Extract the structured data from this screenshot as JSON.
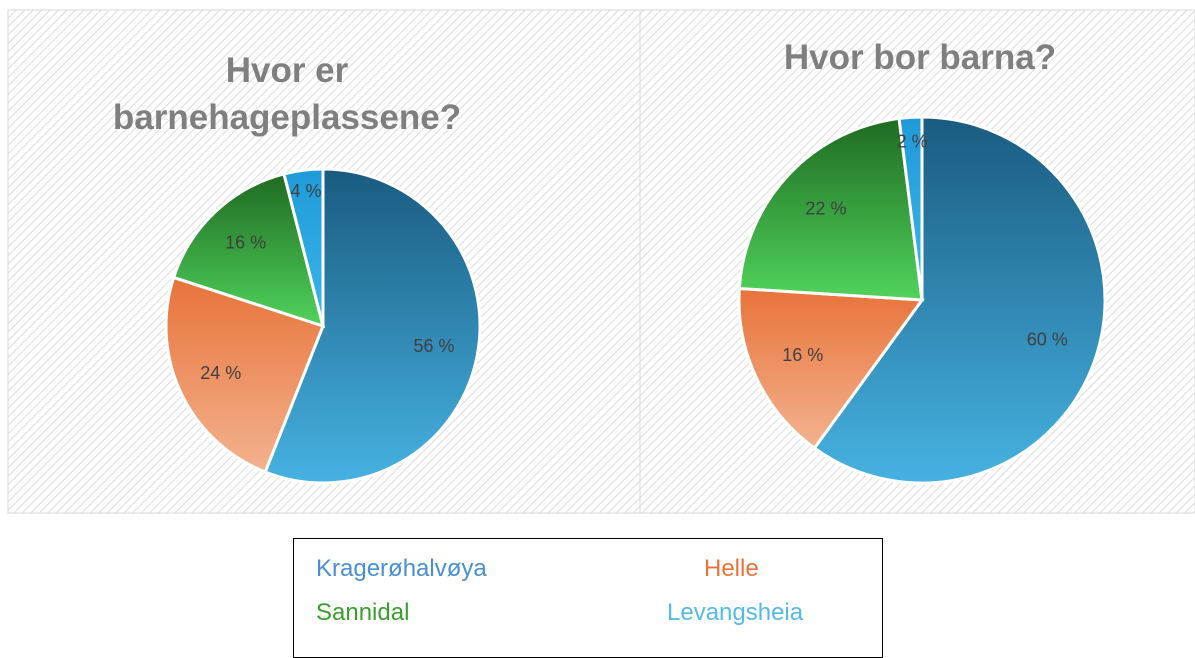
{
  "chart_data": [
    {
      "type": "pie",
      "title": "Hvor er barnehageplassene?",
      "categories": [
        "Kragerøhalvøya",
        "Helle",
        "Sannidal",
        "Levangsheia"
      ],
      "values": [
        56,
        24,
        16,
        4
      ],
      "value_labels": [
        "56 %",
        "24 %",
        "16 %",
        "4 %"
      ],
      "gradients": [
        [
          "#1a5b80",
          "#46b2e2"
        ],
        [
          "#e8733a",
          "#f3b28f"
        ],
        [
          "#1f6b22",
          "#50d35c"
        ],
        [
          "#1f9ad8",
          "#3bb6ea"
        ]
      ]
    },
    {
      "type": "pie",
      "title": "Hvor bor barna?",
      "categories": [
        "Kragerøhalvøya",
        "Helle",
        "Sannidal",
        "Levangsheia"
      ],
      "values": [
        60,
        16,
        22,
        2
      ],
      "value_labels": [
        "60 %",
        "16 %",
        "22 %",
        "2 %"
      ],
      "gradients": [
        [
          "#1a5b80",
          "#46b2e2"
        ],
        [
          "#e8733a",
          "#f3b28f"
        ],
        [
          "#1f6b22",
          "#50d35c"
        ],
        [
          "#1f9ad8",
          "#3bb6ea"
        ]
      ]
    }
  ],
  "legend_colors": [
    "#4a8fd0",
    "#e8733a",
    "#3a9e2c",
    "#55bbe6"
  ]
}
